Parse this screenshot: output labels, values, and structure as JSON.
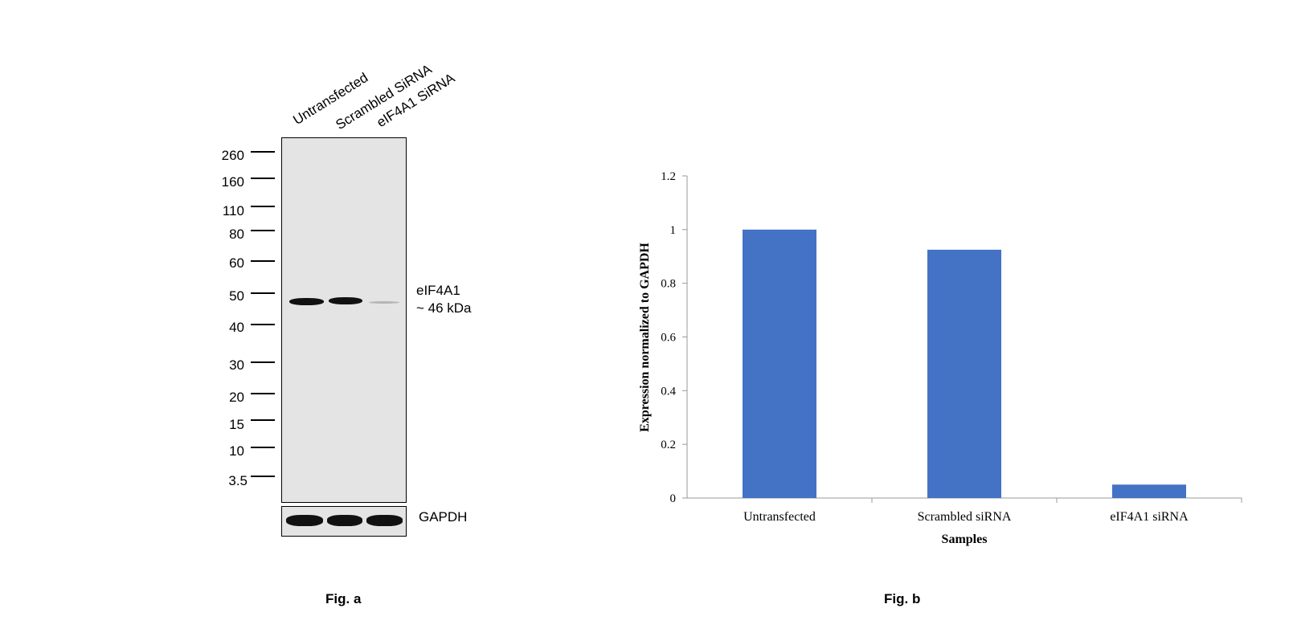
{
  "figure_a": {
    "label": "Fig. a",
    "lanes": [
      "Untransfected",
      "Scrambled SiRNA",
      "eIF4A1 SiRNA"
    ],
    "markers": [
      "260",
      "160",
      "110",
      "80",
      "60",
      "50",
      "40",
      "30",
      "20",
      "15",
      "10",
      "3.5"
    ],
    "target_name": "eIF4A1",
    "target_size": "~ 46 kDa",
    "loading_control": "GAPDH"
  },
  "figure_b": {
    "label": "Fig. b"
  },
  "chart_data": {
    "type": "bar",
    "categories": [
      "Untransfected",
      "Scrambled siRNA",
      "eIF4A1 siRNA"
    ],
    "values": [
      1.0,
      0.925,
      0.05
    ],
    "title": "",
    "xlabel": "Samples",
    "ylabel": "Expression normalized to GAPDH",
    "ylim": [
      0,
      1.2
    ],
    "yticks": [
      "0",
      "0.2",
      "0.4",
      "0.6",
      "0.8",
      "1",
      "1.2"
    ],
    "bar_color": "#4472C4",
    "grid": false,
    "legend": "none"
  }
}
